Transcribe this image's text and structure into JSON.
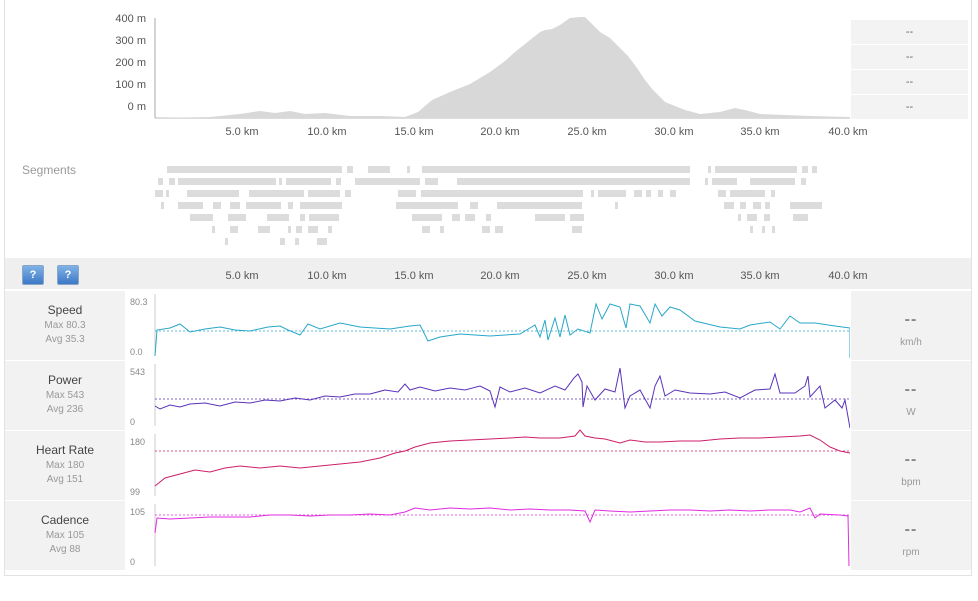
{
  "elevation": {
    "y_labels": [
      "400 m",
      "300 m",
      "200 m",
      "100 m",
      "0 m"
    ],
    "x_labels": [
      "5.0 km",
      "10.0 km",
      "15.0 km",
      "20.0 km",
      "25.0 km",
      "30.0 km",
      "35.0 km",
      "40.0 km"
    ],
    "side_values": [
      "--",
      "--",
      "--",
      "--"
    ],
    "color": "#d8d8d8"
  },
  "segments": {
    "label": "Segments"
  },
  "toolbar": {
    "help_button_1": "?",
    "help_button_2": "?",
    "x_labels": [
      "5.0 km",
      "10.0 km",
      "15.0 km",
      "20.0 km",
      "25.0 km",
      "30.0 km",
      "35.0 km",
      "40.0 km"
    ]
  },
  "metrics": [
    {
      "name": "Speed",
      "max": "Max 80.3",
      "avg": "Avg 35.3",
      "axis_max": "80.3",
      "axis_min": "0.0",
      "value": "--",
      "unit": "km/h",
      "color": "#27a7c9"
    },
    {
      "name": "Power",
      "max": "Max 543",
      "avg": "Avg 236",
      "axis_max": "543",
      "axis_min": "0",
      "value": "--",
      "unit": "W",
      "color": "#5a32b8"
    },
    {
      "name": "Heart Rate",
      "max": "Max 180",
      "avg": "Avg 151",
      "axis_max": "180",
      "axis_min": "99",
      "value": "--",
      "unit": "bpm",
      "color": "#cc1f6a"
    },
    {
      "name": "Cadence",
      "max": "Max 105",
      "avg": "Avg 88",
      "axis_max": "105",
      "axis_min": "0",
      "value": "--",
      "unit": "rpm",
      "color": "#e02be0"
    }
  ]
}
